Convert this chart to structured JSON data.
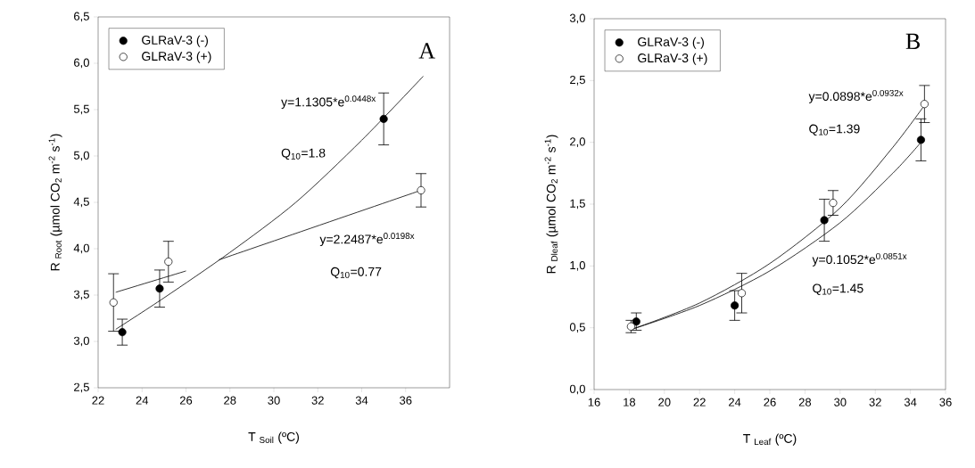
{
  "chart_data": [
    {
      "type": "scatter",
      "xlabel": "T $_{Soil}$ (ºC)",
      "ylabel": "R $_{Root}$ (µmol CO$_{2}$ m$^{-2}$ s$^{-1}$)",
      "xlim": [
        22,
        38
      ],
      "ylim": [
        2.5,
        6.5
      ],
      "xticks": [
        22,
        24,
        26,
        28,
        30,
        32,
        34,
        36
      ],
      "yticks": [
        {
          "value": 2.5,
          "label": "2,5"
        },
        {
          "value": 3.0,
          "label": "3,0"
        },
        {
          "value": 3.5,
          "label": "3,5"
        },
        {
          "value": 4.0,
          "label": "4,0"
        },
        {
          "value": 4.5,
          "label": "4,5"
        },
        {
          "value": 5.0,
          "label": "5,0"
        },
        {
          "value": 5.5,
          "label": "5,5"
        },
        {
          "value": 6.0,
          "label": "6,0"
        },
        {
          "value": 6.5,
          "label": "6,5"
        }
      ],
      "grid": false,
      "legend": "top left",
      "annotations": [
        "A",
        "y=1.1305*e$^{0.0448x}$",
        "Q$_{10}$=1.8",
        "y=2.2487*e$^{0.0198x}$",
        "Q$_{10}$=0.77"
      ],
      "series": [
        {
          "name": "GLRaV-3 (-)",
          "color": "#000000",
          "marker": "circle",
          "x": [
            23.1,
            24.8,
            35.0
          ],
          "values": [
            3.1,
            3.57,
            5.4
          ],
          "errors": [
            0.14,
            0.2,
            0.28
          ]
        },
        {
          "name": "GLRaV-3 (+)",
          "color": "#ffffff",
          "marker": "circle",
          "x": [
            22.7,
            25.2,
            36.7
          ],
          "values": [
            3.42,
            3.86,
            4.63
          ],
          "errors": [
            0.31,
            0.22,
            0.18
          ]
        },
        {
          "type": "line",
          "color": "#000000",
          "marker": "none",
          "x": [
            22.8,
            25,
            28,
            31,
            34,
            36.8
          ],
          "values": [
            3.13,
            3.47,
            3.96,
            4.5,
            5.17,
            5.86
          ]
        },
        {
          "type": "line",
          "color": "#000000",
          "marker": "none",
          "x": [
            22.8,
            26,
            26.7,
            27.5,
            36.7
          ],
          "values": [
            3.53,
            3.76,
            null,
            3.88,
            4.63
          ]
        }
      ]
    },
    {
      "type": "scatter",
      "xlabel": "T $_{Leaf}$ (ºC)",
      "ylabel": "R $_{Dleaf}$ (µmol CO$_{2}$ m$^{-2}$ s$^{-1}$)",
      "xlim": [
        16,
        36
      ],
      "ylim": [
        0,
        3
      ],
      "xticks": [
        16,
        18,
        20,
        22,
        24,
        26,
        28,
        30,
        32,
        34,
        36
      ],
      "yticks": [
        {
          "value": 0,
          "label": "0,0"
        },
        {
          "value": 0.5,
          "label": "0,5"
        },
        {
          "value": 1.0,
          "label": "1,0"
        },
        {
          "value": 1.5,
          "label": "1,5"
        },
        {
          "value": 2.0,
          "label": "2,0"
        },
        {
          "value": 2.5,
          "label": "2,5"
        },
        {
          "value": 3.0,
          "label": "3,0"
        }
      ],
      "grid": false,
      "legend": "top left",
      "annotations": [
        "B",
        "y=0.0898*e$^{0.0932x}$",
        "Q$_{10}$=1.39",
        "y=0.1052*e$^{0.0851x}$",
        "Q$_{10}$=1.45"
      ],
      "series": [
        {
          "name": "GLRaV-3 (-)",
          "color": "#000000",
          "marker": "circle",
          "x": [
            18.4,
            24.0,
            29.1,
            34.6
          ],
          "values": [
            0.55,
            0.68,
            1.37,
            2.02
          ],
          "errors": [
            0.07,
            0.12,
            0.17,
            0.17
          ]
        },
        {
          "name": "GLRaV-3 (+)",
          "color": "#ffffff",
          "marker": "circle",
          "x": [
            18.1,
            24.4,
            29.6,
            34.8
          ],
          "values": [
            0.51,
            0.78,
            1.51,
            2.31
          ],
          "errors": [
            0.05,
            0.16,
            0.1,
            0.15
          ]
        },
        {
          "type": "line",
          "color": "#000000",
          "marker": "none",
          "x": [
            18.2,
            22,
            26,
            30,
            33,
            34.8
          ],
          "values": [
            0.49,
            0.7,
            1.02,
            1.47,
            1.96,
            2.3
          ]
        },
        {
          "type": "line",
          "color": "#000000",
          "marker": "none",
          "x": [
            18.2,
            22,
            26,
            30,
            33,
            34.6
          ],
          "values": [
            0.49,
            0.68,
            0.96,
            1.35,
            1.75,
            2.0
          ]
        }
      ]
    }
  ]
}
